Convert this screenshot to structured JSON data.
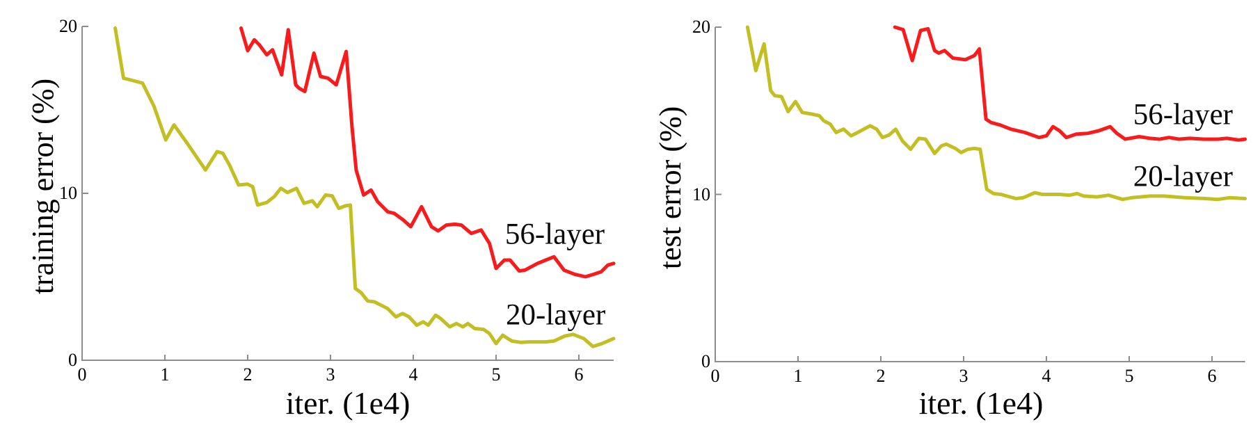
{
  "style": {
    "background": "#ffffff",
    "axis_color": "#8c8c8c",
    "text_color": "#000000",
    "red_56_layer": "#f91b1b",
    "yellow_20_layer": "#c3bf23"
  },
  "chart_data": [
    {
      "type": "line",
      "title": "",
      "xlabel": "iter. (1e4)",
      "ylabel": "training error (%)",
      "xlim": [
        0,
        6.42
      ],
      "ylim": [
        0,
        20
      ],
      "x_ticks": [
        "0",
        "1",
        "2",
        "3",
        "4",
        "5",
        "6"
      ],
      "x_tick_values": [
        0,
        1,
        2,
        3,
        4,
        5,
        6
      ],
      "y_ticks": [
        "0",
        "10",
        "20"
      ],
      "y_tick_values": [
        0,
        10,
        20
      ],
      "grid": false,
      "legend_position": "inline-annotations",
      "annotations": [
        {
          "text": "56-layer",
          "x": 5.71,
          "y": 7.55
        },
        {
          "text": "20-layer",
          "x": 5.72,
          "y": 2.72
        }
      ],
      "series": [
        {
          "name": "20-layer",
          "color": "#c3bf23",
          "points": [
            [
              0.4,
              19.9
            ],
            [
              0.5,
              16.9
            ],
            [
              0.62,
              16.75
            ],
            [
              0.73,
              16.6
            ],
            [
              0.87,
              15.2
            ],
            [
              1.01,
              13.2
            ],
            [
              1.11,
              14.1
            ],
            [
              1.27,
              13.0
            ],
            [
              1.49,
              11.4
            ],
            [
              1.63,
              12.5
            ],
            [
              1.7,
              12.4
            ],
            [
              1.78,
              11.7
            ],
            [
              1.89,
              10.5
            ],
            [
              2.0,
              10.55
            ],
            [
              2.06,
              10.4
            ],
            [
              2.12,
              9.3
            ],
            [
              2.23,
              9.45
            ],
            [
              2.32,
              9.8
            ],
            [
              2.4,
              10.3
            ],
            [
              2.48,
              10.05
            ],
            [
              2.59,
              10.3
            ],
            [
              2.68,
              9.4
            ],
            [
              2.78,
              9.55
            ],
            [
              2.84,
              9.2
            ],
            [
              2.94,
              9.9
            ],
            [
              3.02,
              9.85
            ],
            [
              3.1,
              9.1
            ],
            [
              3.18,
              9.25
            ],
            [
              3.24,
              9.3
            ],
            [
              3.3,
              4.3
            ],
            [
              3.37,
              4.05
            ],
            [
              3.45,
              3.55
            ],
            [
              3.53,
              3.5
            ],
            [
              3.61,
              3.3
            ],
            [
              3.69,
              3.1
            ],
            [
              3.79,
              2.6
            ],
            [
              3.87,
              2.8
            ],
            [
              3.95,
              2.6
            ],
            [
              4.04,
              2.1
            ],
            [
              4.12,
              2.3
            ],
            [
              4.18,
              2.1
            ],
            [
              4.27,
              2.7
            ],
            [
              4.33,
              2.5
            ],
            [
              4.44,
              2.0
            ],
            [
              4.52,
              2.2
            ],
            [
              4.6,
              2.0
            ],
            [
              4.66,
              2.2
            ],
            [
              4.74,
              1.9
            ],
            [
              4.85,
              1.85
            ],
            [
              4.92,
              1.6
            ],
            [
              5.0,
              1.0
            ],
            [
              5.08,
              1.5
            ],
            [
              5.19,
              1.15
            ],
            [
              5.3,
              1.07
            ],
            [
              5.4,
              1.1
            ],
            [
              5.5,
              1.1
            ],
            [
              5.6,
              1.1
            ],
            [
              5.7,
              1.15
            ],
            [
              5.83,
              1.45
            ],
            [
              5.93,
              1.55
            ],
            [
              6.06,
              1.3
            ],
            [
              6.17,
              0.82
            ],
            [
              6.28,
              1.0
            ],
            [
              6.42,
              1.3
            ]
          ]
        },
        {
          "name": "56-layer",
          "color": "#f91b1b",
          "points": [
            [
              1.92,
              19.9
            ],
            [
              2.0,
              18.55
            ],
            [
              2.08,
              19.2
            ],
            [
              2.14,
              18.9
            ],
            [
              2.23,
              18.3
            ],
            [
              2.3,
              18.6
            ],
            [
              2.41,
              17.1
            ],
            [
              2.49,
              19.8
            ],
            [
              2.58,
              16.5
            ],
            [
              2.62,
              16.3
            ],
            [
              2.69,
              16.1
            ],
            [
              2.8,
              18.4
            ],
            [
              2.88,
              17.0
            ],
            [
              2.97,
              16.9
            ],
            [
              3.07,
              16.5
            ],
            [
              3.19,
              18.5
            ],
            [
              3.26,
              14.0
            ],
            [
              3.31,
              11.4
            ],
            [
              3.4,
              9.9
            ],
            [
              3.49,
              10.2
            ],
            [
              3.57,
              9.5
            ],
            [
              3.69,
              8.9
            ],
            [
              3.77,
              8.8
            ],
            [
              3.88,
              8.4
            ],
            [
              3.97,
              8.0
            ],
            [
              4.1,
              9.2
            ],
            [
              4.22,
              8.0
            ],
            [
              4.3,
              7.75
            ],
            [
              4.4,
              8.1
            ],
            [
              4.5,
              8.15
            ],
            [
              4.58,
              8.1
            ],
            [
              4.7,
              7.6
            ],
            [
              4.82,
              7.8
            ],
            [
              4.92,
              7.0
            ],
            [
              5.0,
              5.5
            ],
            [
              5.1,
              6.0
            ],
            [
              5.17,
              6.0
            ],
            [
              5.28,
              5.35
            ],
            [
              5.35,
              5.4
            ],
            [
              5.5,
              5.8
            ],
            [
              5.6,
              6.0
            ],
            [
              5.7,
              6.2
            ],
            [
              5.82,
              5.4
            ],
            [
              5.95,
              5.15
            ],
            [
              6.08,
              5.0
            ],
            [
              6.18,
              5.15
            ],
            [
              6.27,
              5.3
            ],
            [
              6.35,
              5.7
            ],
            [
              6.42,
              5.8
            ]
          ]
        }
      ]
    },
    {
      "type": "line",
      "title": "",
      "xlabel": "iter. (1e4)",
      "ylabel": "test error (%)",
      "xlim": [
        0,
        6.4
      ],
      "ylim": [
        0,
        20
      ],
      "x_ticks": [
        "0",
        "1",
        "2",
        "3",
        "4",
        "5",
        "6"
      ],
      "x_tick_values": [
        0,
        1,
        2,
        3,
        4,
        5,
        6
      ],
      "y_ticks": [
        "0",
        "10",
        "20"
      ],
      "y_tick_values": [
        0,
        10,
        20
      ],
      "grid": false,
      "legend_position": "inline-annotations",
      "annotations": [
        {
          "text": "56-layer",
          "x": 5.65,
          "y": 14.75
        },
        {
          "text": "20-layer",
          "x": 5.65,
          "y": 11.05
        }
      ],
      "series": [
        {
          "name": "20-layer",
          "color": "#c3bf23",
          "points": [
            [
              0.39,
              20.0
            ],
            [
              0.49,
              17.4
            ],
            [
              0.59,
              19.0
            ],
            [
              0.67,
              16.2
            ],
            [
              0.72,
              15.9
            ],
            [
              0.8,
              15.85
            ],
            [
              0.88,
              14.95
            ],
            [
              0.97,
              15.55
            ],
            [
              1.05,
              14.9
            ],
            [
              1.17,
              14.8
            ],
            [
              1.26,
              14.7
            ],
            [
              1.31,
              14.4
            ],
            [
              1.39,
              14.2
            ],
            [
              1.46,
              13.7
            ],
            [
              1.55,
              13.9
            ],
            [
              1.64,
              13.5
            ],
            [
              1.72,
              13.7
            ],
            [
              1.87,
              14.1
            ],
            [
              1.95,
              13.9
            ],
            [
              2.02,
              13.4
            ],
            [
              2.1,
              13.55
            ],
            [
              2.18,
              13.9
            ],
            [
              2.26,
              13.2
            ],
            [
              2.36,
              12.7
            ],
            [
              2.46,
              13.35
            ],
            [
              2.54,
              13.3
            ],
            [
              2.65,
              12.45
            ],
            [
              2.73,
              12.9
            ],
            [
              2.79,
              13.0
            ],
            [
              2.9,
              12.75
            ],
            [
              2.97,
              12.5
            ],
            [
              3.05,
              12.7
            ],
            [
              3.13,
              12.75
            ],
            [
              3.2,
              12.7
            ],
            [
              3.28,
              10.3
            ],
            [
              3.36,
              10.05
            ],
            [
              3.45,
              10.0
            ],
            [
              3.63,
              9.75
            ],
            [
              3.72,
              9.8
            ],
            [
              3.86,
              10.1
            ],
            [
              3.95,
              10.0
            ],
            [
              4.16,
              10.0
            ],
            [
              4.28,
              9.95
            ],
            [
              4.37,
              10.05
            ],
            [
              4.45,
              9.9
            ],
            [
              4.61,
              9.85
            ],
            [
              4.75,
              9.95
            ],
            [
              4.92,
              9.7
            ],
            [
              5.03,
              9.8
            ],
            [
              5.25,
              9.9
            ],
            [
              5.42,
              9.9
            ],
            [
              5.67,
              9.8
            ],
            [
              5.92,
              9.75
            ],
            [
              6.07,
              9.7
            ],
            [
              6.21,
              9.8
            ],
            [
              6.4,
              9.75
            ]
          ]
        },
        {
          "name": "56-layer",
          "color": "#f91b1b",
          "points": [
            [
              2.17,
              20.0
            ],
            [
              2.27,
              19.85
            ],
            [
              2.38,
              18.0
            ],
            [
              2.48,
              19.8
            ],
            [
              2.57,
              19.9
            ],
            [
              2.65,
              18.6
            ],
            [
              2.7,
              18.45
            ],
            [
              2.77,
              18.6
            ],
            [
              2.87,
              18.15
            ],
            [
              2.95,
              18.1
            ],
            [
              3.02,
              18.05
            ],
            [
              3.13,
              18.3
            ],
            [
              3.19,
              18.7
            ],
            [
              3.27,
              14.5
            ],
            [
              3.33,
              14.3
            ],
            [
              3.44,
              14.15
            ],
            [
              3.57,
              13.9
            ],
            [
              3.74,
              13.7
            ],
            [
              3.91,
              13.4
            ],
            [
              4.0,
              13.5
            ],
            [
              4.08,
              14.05
            ],
            [
              4.16,
              13.8
            ],
            [
              4.24,
              13.4
            ],
            [
              4.36,
              13.6
            ],
            [
              4.5,
              13.65
            ],
            [
              4.63,
              13.8
            ],
            [
              4.77,
              14.05
            ],
            [
              4.85,
              13.65
            ],
            [
              4.95,
              13.3
            ],
            [
              5.12,
              13.45
            ],
            [
              5.25,
              13.35
            ],
            [
              5.37,
              13.3
            ],
            [
              5.48,
              13.4
            ],
            [
              5.6,
              13.3
            ],
            [
              5.73,
              13.35
            ],
            [
              5.9,
              13.3
            ],
            [
              6.07,
              13.3
            ],
            [
              6.18,
              13.35
            ],
            [
              6.32,
              13.25
            ],
            [
              6.4,
              13.3
            ]
          ]
        }
      ]
    }
  ]
}
